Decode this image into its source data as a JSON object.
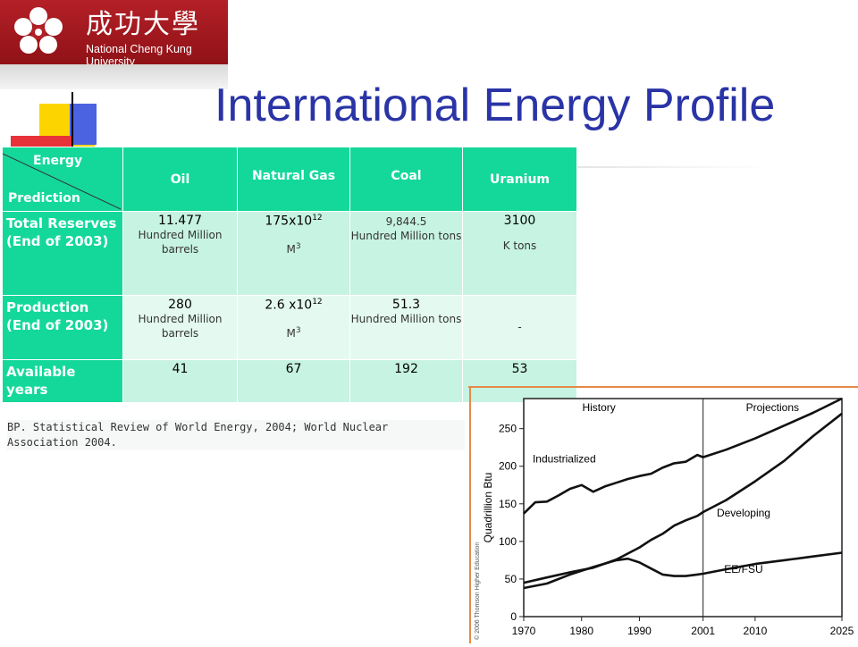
{
  "logo": {
    "chinese_name": "成功大學",
    "english_name": "National Cheng Kung University"
  },
  "title": "International Energy Profile",
  "table": {
    "corner_top": "Energy",
    "corner_bottom": "Prediction",
    "columns": [
      "Oil",
      "Natural Gas",
      "Coal",
      "Uranium"
    ],
    "rows": [
      {
        "label": "Total Reserves (End of 2003)",
        "cells": [
          {
            "value": "11.477",
            "unit": "Hundred Million barrels"
          },
          {
            "value": "175x10",
            "exp": "12",
            "unit": "M",
            "unit_exp": "3"
          },
          {
            "value": "9,844.5",
            "unit": "Hundred Million tons"
          },
          {
            "value": "3100",
            "unit": "K tons"
          }
        ]
      },
      {
        "label": "Production (End of 2003)",
        "cells": [
          {
            "value": "280",
            "unit": "Hundred Million barrels"
          },
          {
            "value": "2.6 x10",
            "exp": "12",
            "unit": "M",
            "unit_exp": "3"
          },
          {
            "value": "51.3",
            "unit": "Hundred Million tons"
          },
          {
            "value": "-",
            "unit": ""
          }
        ]
      },
      {
        "label": "Available years",
        "cells": [
          {
            "value": "41"
          },
          {
            "value": "67"
          },
          {
            "value": "192"
          },
          {
            "value": "53"
          }
        ]
      }
    ]
  },
  "source": "BP. Statistical Review of World Energy, 2004; World Nuclear Association 2004.",
  "chart_data": {
    "type": "line",
    "ylabel": "Quadrillion Btu",
    "xlim": [
      1970,
      2025
    ],
    "ylim": [
      0,
      290
    ],
    "x_ticks": [
      1970,
      1980,
      1990,
      2001,
      2010,
      2025
    ],
    "y_ticks": [
      0,
      50,
      100,
      150,
      200,
      250
    ],
    "divider_x": 2001,
    "region_labels": {
      "left": "History",
      "right": "Projections"
    },
    "series": [
      {
        "name": "Industrialized",
        "x": [
          1970,
          1972,
          1974,
          1976,
          1978,
          1980,
          1982,
          1984,
          1986,
          1988,
          1990,
          1992,
          1994,
          1996,
          1998,
          2000,
          2001,
          2005,
          2010,
          2015,
          2020,
          2025
        ],
        "y": [
          137,
          152,
          153,
          161,
          170,
          175,
          166,
          173,
          178,
          183,
          187,
          190,
          198,
          204,
          206,
          215,
          212,
          222,
          237,
          254,
          271,
          290
        ]
      },
      {
        "name": "Developing",
        "x": [
          1970,
          1974,
          1978,
          1982,
          1986,
          1990,
          1992,
          1994,
          1996,
          1998,
          2000,
          2001,
          2005,
          2010,
          2015,
          2020,
          2025
        ],
        "y": [
          45,
          52,
          59,
          65,
          76,
          92,
          102,
          110,
          121,
          128,
          134,
          139,
          155,
          180,
          207,
          240,
          270
        ]
      },
      {
        "name": "EE/FSU",
        "x": [
          1970,
          1974,
          1978,
          1982,
          1986,
          1988,
          1990,
          1992,
          1994,
          1996,
          1998,
          2000,
          2001,
          2005,
          2010,
          2015,
          2020,
          2025
        ],
        "y": [
          38,
          44,
          56,
          66,
          75,
          77,
          72,
          64,
          56,
          54,
          54,
          56,
          57,
          63,
          70,
          75,
          80,
          85
        ]
      }
    ],
    "labels": [
      {
        "text": "Industrialized",
        "x": 1977,
        "y": 205
      },
      {
        "text": "Developing",
        "x": 2008,
        "y": 133
      },
      {
        "text": "EE/FSU",
        "x": 2008,
        "y": 58
      }
    ],
    "credit": "© 2006 Thomson Higher Education"
  }
}
